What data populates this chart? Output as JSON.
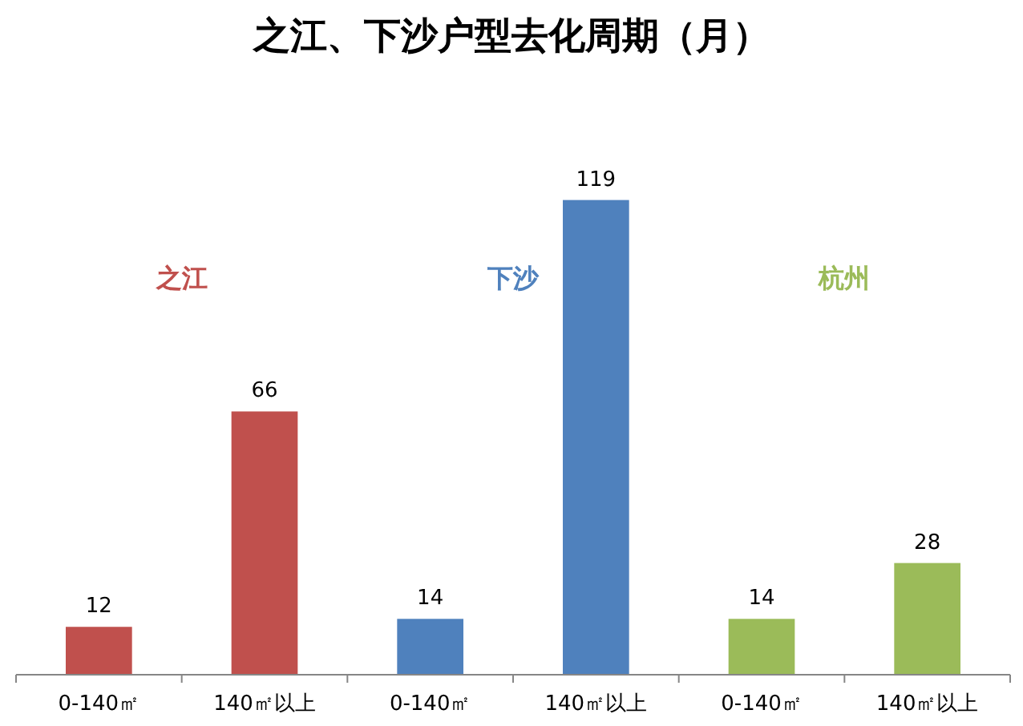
{
  "chart_data": {
    "type": "bar",
    "title": "之江、下沙户型去化周期（月）",
    "categories": [
      "0-140㎡",
      "140㎡以上",
      "0-140㎡",
      "140㎡以上",
      "0-140㎡",
      "140㎡以上"
    ],
    "series": [
      {
        "name": "之江",
        "color": "#c0504d",
        "values": [
          12,
          66,
          null,
          null,
          null,
          null
        ]
      },
      {
        "name": "下沙",
        "color": "#4f81bd",
        "values": [
          null,
          null,
          14,
          119,
          null,
          null
        ]
      },
      {
        "name": "杭州",
        "color": "#9bbb59",
        "values": [
          null,
          null,
          null,
          null,
          14,
          28
        ]
      }
    ],
    "data_labels": true
  }
}
